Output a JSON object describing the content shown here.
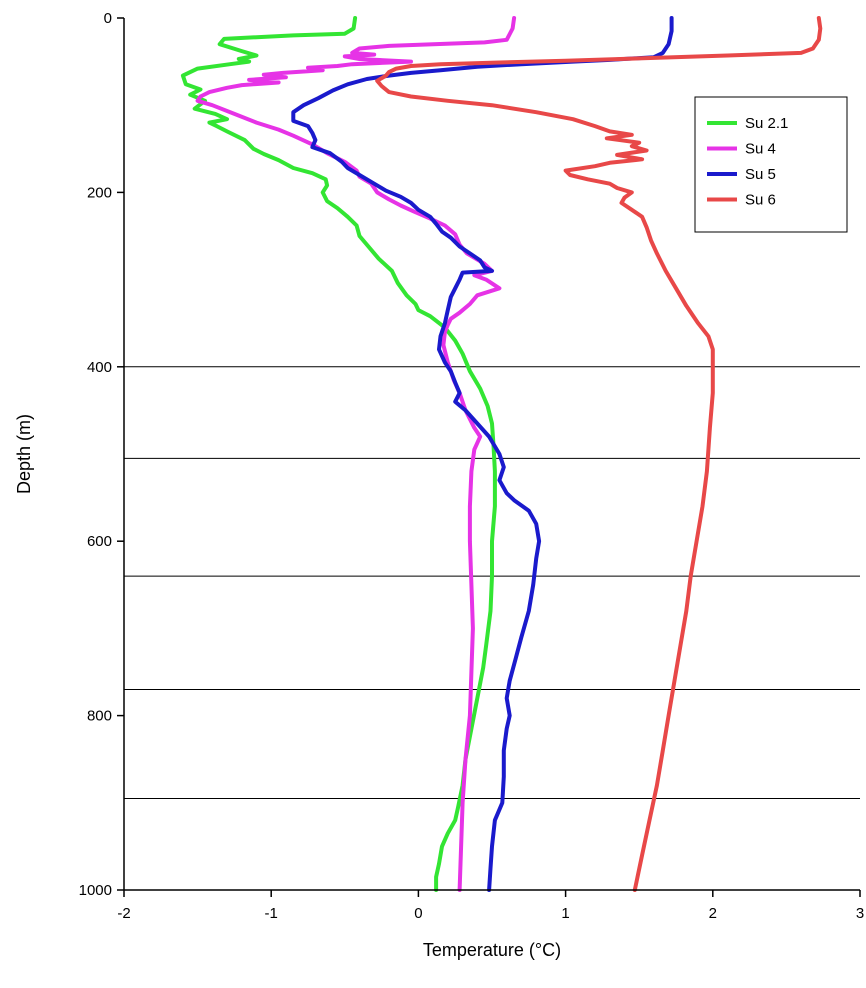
{
  "chart_data": {
    "type": "line",
    "xlabel": "Temperature (°C)",
    "ylabel": "Depth (m)",
    "xlim": [
      -2,
      3
    ],
    "ylim": [
      0,
      1000
    ],
    "y_inverted": true,
    "x_ticks": [
      -2,
      -1,
      0,
      1,
      2,
      3
    ],
    "y_ticks": [
      0,
      200,
      400,
      600,
      800,
      1000
    ],
    "reference_lines_depth": [
      400,
      505,
      640,
      770,
      895,
      1000
    ],
    "legend_position": "top-right",
    "series": [
      {
        "name": "Su 2.1",
        "color": "#33e533",
        "points": [
          [
            -0.43,
            0
          ],
          [
            -0.44,
            12
          ],
          [
            -0.5,
            18
          ],
          [
            -0.85,
            20
          ],
          [
            -1.1,
            22
          ],
          [
            -1.32,
            24
          ],
          [
            -1.35,
            30
          ],
          [
            -1.2,
            38
          ],
          [
            -1.1,
            43
          ],
          [
            -1.22,
            47
          ],
          [
            -1.15,
            50
          ],
          [
            -1.28,
            53
          ],
          [
            -1.5,
            58
          ],
          [
            -1.6,
            66
          ],
          [
            -1.58,
            76
          ],
          [
            -1.48,
            82
          ],
          [
            -1.55,
            88
          ],
          [
            -1.45,
            95
          ],
          [
            -1.52,
            104
          ],
          [
            -1.38,
            110
          ],
          [
            -1.3,
            116
          ],
          [
            -1.42,
            120
          ],
          [
            -1.37,
            124
          ],
          [
            -1.3,
            130
          ],
          [
            -1.18,
            140
          ],
          [
            -1.12,
            150
          ],
          [
            -1.05,
            156
          ],
          [
            -0.95,
            163
          ],
          [
            -0.85,
            172
          ],
          [
            -0.72,
            178
          ],
          [
            -0.63,
            185
          ],
          [
            -0.62,
            192
          ],
          [
            -0.65,
            200
          ],
          [
            -0.62,
            210
          ],
          [
            -0.55,
            218
          ],
          [
            -0.48,
            228
          ],
          [
            -0.42,
            238
          ],
          [
            -0.4,
            250
          ],
          [
            -0.34,
            262
          ],
          [
            -0.27,
            276
          ],
          [
            -0.18,
            290
          ],
          [
            -0.14,
            304
          ],
          [
            -0.08,
            318
          ],
          [
            -0.02,
            328
          ],
          [
            0.0,
            335
          ],
          [
            0.08,
            342
          ],
          [
            0.18,
            355
          ],
          [
            0.25,
            370
          ],
          [
            0.3,
            385
          ],
          [
            0.35,
            405
          ],
          [
            0.42,
            425
          ],
          [
            0.47,
            445
          ],
          [
            0.5,
            465
          ],
          [
            0.51,
            490
          ],
          [
            0.52,
            520
          ],
          [
            0.52,
            560
          ],
          [
            0.5,
            600
          ],
          [
            0.5,
            640
          ],
          [
            0.49,
            680
          ],
          [
            0.46,
            720
          ],
          [
            0.44,
            745
          ],
          [
            0.4,
            780
          ],
          [
            0.36,
            815
          ],
          [
            0.32,
            850
          ],
          [
            0.3,
            880
          ],
          [
            0.27,
            905
          ],
          [
            0.25,
            920
          ],
          [
            0.2,
            935
          ],
          [
            0.16,
            950
          ],
          [
            0.14,
            970
          ],
          [
            0.12,
            985
          ],
          [
            0.12,
            1000
          ]
        ]
      },
      {
        "name": "Su 4",
        "color": "#e633e6",
        "points": [
          [
            0.65,
            0
          ],
          [
            0.64,
            12
          ],
          [
            0.6,
            25
          ],
          [
            0.45,
            28
          ],
          [
            0.1,
            30
          ],
          [
            -0.2,
            32
          ],
          [
            -0.4,
            35
          ],
          [
            -0.45,
            40
          ],
          [
            -0.3,
            42
          ],
          [
            -0.5,
            44
          ],
          [
            -0.4,
            47
          ],
          [
            -0.05,
            50
          ],
          [
            -0.45,
            53
          ],
          [
            -0.55,
            55
          ],
          [
            -0.75,
            57
          ],
          [
            -0.65,
            60
          ],
          [
            -0.92,
            63
          ],
          [
            -1.05,
            65
          ],
          [
            -0.9,
            68
          ],
          [
            -1.15,
            71
          ],
          [
            -0.95,
            74
          ],
          [
            -1.2,
            77
          ],
          [
            -1.3,
            80
          ],
          [
            -1.42,
            85
          ],
          [
            -1.48,
            90
          ],
          [
            -1.5,
            95
          ],
          [
            -1.4,
            100
          ],
          [
            -1.25,
            110
          ],
          [
            -1.1,
            120
          ],
          [
            -0.95,
            128
          ],
          [
            -0.85,
            135
          ],
          [
            -0.72,
            145
          ],
          [
            -0.62,
            155
          ],
          [
            -0.5,
            165
          ],
          [
            -0.42,
            175
          ],
          [
            -0.4,
            182
          ],
          [
            -0.32,
            190
          ],
          [
            -0.28,
            200
          ],
          [
            -0.2,
            208
          ],
          [
            -0.12,
            215
          ],
          [
            -0.03,
            222
          ],
          [
            0.08,
            230
          ],
          [
            0.18,
            238
          ],
          [
            0.25,
            248
          ],
          [
            0.28,
            260
          ],
          [
            0.33,
            270
          ],
          [
            0.45,
            282
          ],
          [
            0.5,
            290
          ],
          [
            0.38,
            295
          ],
          [
            0.46,
            300
          ],
          [
            0.55,
            310
          ],
          [
            0.4,
            318
          ],
          [
            0.35,
            328
          ],
          [
            0.28,
            338
          ],
          [
            0.22,
            345
          ],
          [
            0.2,
            352
          ],
          [
            0.18,
            360
          ],
          [
            0.17,
            375
          ],
          [
            0.2,
            395
          ],
          [
            0.24,
            415
          ],
          [
            0.28,
            430
          ],
          [
            0.32,
            450
          ],
          [
            0.38,
            470
          ],
          [
            0.42,
            480
          ],
          [
            0.38,
            495
          ],
          [
            0.36,
            520
          ],
          [
            0.35,
            560
          ],
          [
            0.35,
            600
          ],
          [
            0.36,
            650
          ],
          [
            0.37,
            700
          ],
          [
            0.36,
            750
          ],
          [
            0.35,
            800
          ],
          [
            0.32,
            850
          ],
          [
            0.3,
            900
          ],
          [
            0.29,
            950
          ],
          [
            0.28,
            1000
          ]
        ]
      },
      {
        "name": "Su 5",
        "color": "#1a1acc",
        "points": [
          [
            1.72,
            0
          ],
          [
            1.72,
            15
          ],
          [
            1.7,
            30
          ],
          [
            1.66,
            40
          ],
          [
            1.6,
            45
          ],
          [
            1.3,
            48
          ],
          [
            1.05,
            50
          ],
          [
            0.7,
            53
          ],
          [
            0.4,
            56
          ],
          [
            0.15,
            60
          ],
          [
            -0.05,
            63
          ],
          [
            -0.2,
            66
          ],
          [
            -0.35,
            70
          ],
          [
            -0.48,
            76
          ],
          [
            -0.58,
            83
          ],
          [
            -0.68,
            92
          ],
          [
            -0.78,
            100
          ],
          [
            -0.85,
            108
          ],
          [
            -0.85,
            118
          ],
          [
            -0.75,
            124
          ],
          [
            -0.72,
            132
          ],
          [
            -0.7,
            140
          ],
          [
            -0.72,
            148
          ],
          [
            -0.6,
            155
          ],
          [
            -0.52,
            165
          ],
          [
            -0.48,
            172
          ],
          [
            -0.4,
            180
          ],
          [
            -0.3,
            190
          ],
          [
            -0.22,
            198
          ],
          [
            -0.12,
            205
          ],
          [
            -0.05,
            212
          ],
          [
            0.0,
            220
          ],
          [
            0.08,
            228
          ],
          [
            0.12,
            236
          ],
          [
            0.16,
            245
          ],
          [
            0.22,
            252
          ],
          [
            0.28,
            262
          ],
          [
            0.35,
            270
          ],
          [
            0.42,
            278
          ],
          [
            0.45,
            286
          ],
          [
            0.5,
            290
          ],
          [
            0.3,
            292
          ],
          [
            0.28,
            300
          ],
          [
            0.25,
            310
          ],
          [
            0.22,
            320
          ],
          [
            0.2,
            335
          ],
          [
            0.18,
            350
          ],
          [
            0.15,
            365
          ],
          [
            0.14,
            380
          ],
          [
            0.18,
            395
          ],
          [
            0.22,
            405
          ],
          [
            0.25,
            418
          ],
          [
            0.28,
            430
          ],
          [
            0.25,
            440
          ],
          [
            0.32,
            450
          ],
          [
            0.4,
            465
          ],
          [
            0.48,
            480
          ],
          [
            0.55,
            500
          ],
          [
            0.58,
            515
          ],
          [
            0.55,
            530
          ],
          [
            0.6,
            545
          ],
          [
            0.65,
            553
          ],
          [
            0.75,
            565
          ],
          [
            0.8,
            580
          ],
          [
            0.82,
            600
          ],
          [
            0.8,
            620
          ],
          [
            0.78,
            650
          ],
          [
            0.75,
            680
          ],
          [
            0.7,
            710
          ],
          [
            0.66,
            735
          ],
          [
            0.62,
            760
          ],
          [
            0.6,
            780
          ],
          [
            0.62,
            800
          ],
          [
            0.6,
            815
          ],
          [
            0.58,
            840
          ],
          [
            0.58,
            870
          ],
          [
            0.57,
            900
          ],
          [
            0.52,
            920
          ],
          [
            0.5,
            950
          ],
          [
            0.49,
            975
          ],
          [
            0.48,
            1000
          ]
        ]
      },
      {
        "name": "Su 6",
        "color": "#e84848",
        "points": [
          [
            2.72,
            0
          ],
          [
            2.73,
            12
          ],
          [
            2.72,
            25
          ],
          [
            2.68,
            35
          ],
          [
            2.6,
            40
          ],
          [
            2.1,
            43
          ],
          [
            1.55,
            46
          ],
          [
            1.0,
            49
          ],
          [
            0.55,
            51
          ],
          [
            0.15,
            53
          ],
          [
            -0.05,
            55
          ],
          [
            -0.15,
            58
          ],
          [
            -0.2,
            62
          ],
          [
            -0.22,
            66
          ],
          [
            -0.28,
            72
          ],
          [
            -0.25,
            78
          ],
          [
            -0.2,
            85
          ],
          [
            -0.05,
            90
          ],
          [
            0.2,
            95
          ],
          [
            0.5,
            100
          ],
          [
            0.8,
            108
          ],
          [
            1.05,
            116
          ],
          [
            1.2,
            124
          ],
          [
            1.3,
            130
          ],
          [
            1.45,
            134
          ],
          [
            1.28,
            138
          ],
          [
            1.5,
            143
          ],
          [
            1.45,
            147
          ],
          [
            1.55,
            152
          ],
          [
            1.35,
            157
          ],
          [
            1.52,
            162
          ],
          [
            1.3,
            166
          ],
          [
            1.2,
            170
          ],
          [
            1.0,
            175
          ],
          [
            1.03,
            180
          ],
          [
            1.15,
            185
          ],
          [
            1.3,
            190
          ],
          [
            1.35,
            195
          ],
          [
            1.45,
            200
          ],
          [
            1.4,
            206
          ],
          [
            1.38,
            212
          ],
          [
            1.45,
            220
          ],
          [
            1.52,
            228
          ],
          [
            1.55,
            240
          ],
          [
            1.58,
            255
          ],
          [
            1.62,
            270
          ],
          [
            1.68,
            290
          ],
          [
            1.75,
            310
          ],
          [
            1.82,
            330
          ],
          [
            1.9,
            350
          ],
          [
            1.97,
            365
          ],
          [
            2.0,
            380
          ],
          [
            2.0,
            400
          ],
          [
            2.0,
            430
          ],
          [
            1.98,
            470
          ],
          [
            1.96,
            520
          ],
          [
            1.93,
            560
          ],
          [
            1.89,
            600
          ],
          [
            1.85,
            640
          ],
          [
            1.82,
            680
          ],
          [
            1.78,
            720
          ],
          [
            1.74,
            760
          ],
          [
            1.7,
            800
          ],
          [
            1.66,
            840
          ],
          [
            1.62,
            880
          ],
          [
            1.57,
            920
          ],
          [
            1.52,
            960
          ],
          [
            1.47,
            1000
          ]
        ]
      }
    ]
  }
}
